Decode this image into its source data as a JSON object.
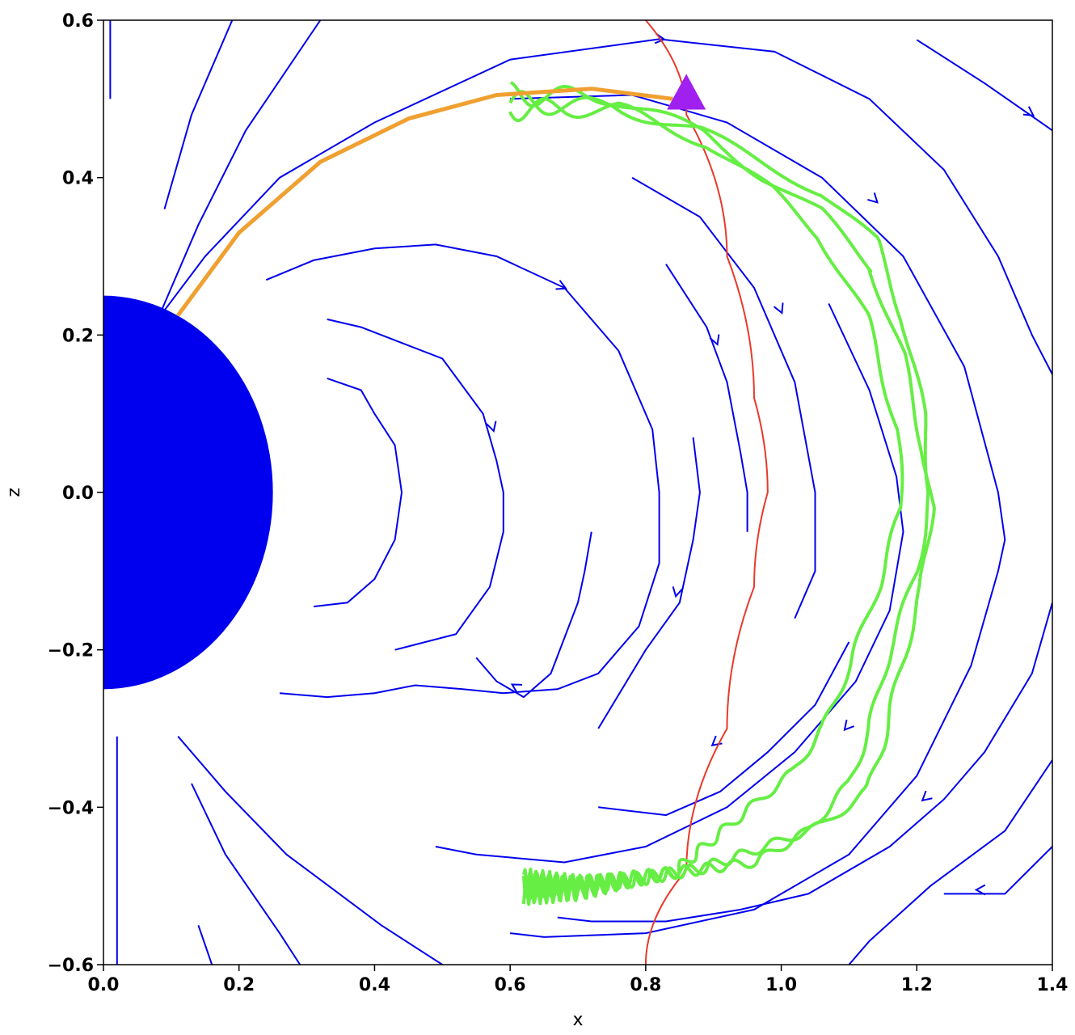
{
  "chart_data": {
    "type": "line",
    "title": "",
    "xlabel": "x",
    "ylabel": "z",
    "xlim": [
      0.0,
      1.4
    ],
    "ylim": [
      -0.6,
      0.6
    ],
    "x_ticks": [
      "0.0",
      "0.2",
      "0.4",
      "0.6",
      "0.8",
      "1.0",
      "1.2",
      "1.4"
    ],
    "y_ticks": [
      "0.6",
      "0.4",
      "0.2",
      "0.0",
      "−0.2",
      "−0.4",
      "−0.6"
    ],
    "x_tick_values": [
      0.0,
      0.2,
      0.4,
      0.6,
      0.8,
      1.0,
      1.2,
      1.4
    ],
    "y_tick_values": [
      0.6,
      0.4,
      0.2,
      0.0,
      -0.2,
      -0.4,
      -0.6
    ],
    "grid": false,
    "colors": {
      "field_lines": "#0000ee",
      "planet": "#0000ee",
      "boundary": "#e8392b",
      "guiding_line": "#f0a030",
      "particle_path": "#66ee44",
      "start_marker": "#a020f0"
    },
    "planet_radius": 0.25,
    "boundary_line": {
      "description_points": [
        [
          0.8,
          0.6
        ],
        [
          0.86,
          0.48
        ],
        [
          0.92,
          0.3
        ],
        [
          0.96,
          0.12
        ],
        [
          0.98,
          0.0
        ],
        [
          0.96,
          -0.12
        ],
        [
          0.92,
          -0.3
        ],
        [
          0.86,
          -0.48
        ],
        [
          0.8,
          -0.6
        ]
      ]
    },
    "guiding_field_line": [
      [
        0.11,
        0.225
      ],
      [
        0.2,
        0.33
      ],
      [
        0.32,
        0.42
      ],
      [
        0.45,
        0.475
      ],
      [
        0.58,
        0.505
      ],
      [
        0.72,
        0.513
      ],
      [
        0.84,
        0.5
      ]
    ],
    "start_marker": [
      0.86,
      0.505
    ],
    "field_lines": [
      {
        "points": [
          [
            0.01,
            0.6
          ],
          [
            0.01,
            0.5
          ]
        ]
      },
      {
        "points": [
          [
            0.09,
            0.36
          ],
          [
            0.13,
            0.48
          ],
          [
            0.19,
            0.6
          ]
        ]
      },
      {
        "points": [
          [
            0.08,
            0.22
          ],
          [
            0.14,
            0.34
          ],
          [
            0.21,
            0.46
          ],
          [
            0.32,
            0.6
          ]
        ]
      },
      {
        "points": [
          [
            0.08,
            0.22
          ],
          [
            0.15,
            0.3
          ],
          [
            0.26,
            0.4
          ],
          [
            0.4,
            0.47
          ],
          [
            0.6,
            0.55
          ],
          [
            0.82,
            0.576
          ],
          [
            0.99,
            0.56
          ],
          [
            1.13,
            0.5
          ],
          [
            1.24,
            0.41
          ],
          [
            1.32,
            0.3
          ],
          [
            1.37,
            0.2
          ],
          [
            1.4,
            0.15
          ]
        ],
        "arrows": [
          0.825,
          0.576
        ]
      },
      {
        "points": [
          [
            0.6,
            0.5
          ],
          [
            0.78,
            0.505
          ],
          [
            0.92,
            0.47
          ],
          [
            1.06,
            0.4
          ],
          [
            1.18,
            0.3
          ],
          [
            1.27,
            0.16
          ],
          [
            1.32,
            0.0
          ],
          [
            1.33,
            -0.06
          ],
          [
            1.32,
            -0.1
          ],
          [
            1.28,
            -0.22
          ],
          [
            1.2,
            -0.36
          ],
          [
            1.1,
            -0.46
          ],
          [
            0.96,
            -0.53
          ],
          [
            0.8,
            -0.56
          ],
          [
            0.65,
            -0.565
          ],
          [
            0.6,
            -0.56
          ]
        ],
        "arrows": [
          1.14,
          0.37
        ]
      },
      {
        "points": [
          [
            1.2,
            0.575
          ],
          [
            1.3,
            0.52
          ],
          [
            1.4,
            0.46
          ]
        ],
        "arrows": [
          1.37,
          0.48
        ]
      },
      {
        "points": [
          [
            0.24,
            0.27
          ],
          [
            0.31,
            0.295
          ],
          [
            0.4,
            0.31
          ],
          [
            0.49,
            0.315
          ],
          [
            0.58,
            0.3
          ],
          [
            0.68,
            0.26
          ],
          [
            0.76,
            0.18
          ],
          [
            0.81,
            0.08
          ],
          [
            0.82,
            0.0
          ],
          [
            0.82,
            -0.09
          ],
          [
            0.79,
            -0.17
          ],
          [
            0.73,
            -0.23
          ],
          [
            0.67,
            -0.25
          ],
          [
            0.59,
            -0.255
          ],
          [
            0.53,
            -0.25
          ],
          [
            0.46,
            -0.245
          ],
          [
            0.4,
            -0.255
          ],
          [
            0.33,
            -0.26
          ],
          [
            0.26,
            -0.255
          ]
        ],
        "arrows": [
          0.68,
          0.26
        ]
      },
      {
        "points": [
          [
            0.33,
            0.22
          ],
          [
            0.38,
            0.21
          ],
          [
            0.44,
            0.19
          ],
          [
            0.5,
            0.17
          ],
          [
            0.56,
            0.1
          ],
          [
            0.58,
            0.04
          ],
          [
            0.59,
            0.0
          ],
          [
            0.59,
            -0.05
          ],
          [
            0.57,
            -0.12
          ],
          [
            0.52,
            -0.18
          ],
          [
            0.43,
            -0.2
          ]
        ],
        "arrows": [
          0.575,
          0.08
        ]
      },
      {
        "points": [
          [
            0.33,
            0.145
          ],
          [
            0.38,
            0.13
          ],
          [
            0.4,
            0.1
          ],
          [
            0.43,
            0.06
          ],
          [
            0.44,
            0.0
          ],
          [
            0.43,
            -0.06
          ],
          [
            0.4,
            -0.11
          ],
          [
            0.36,
            -0.14
          ],
          [
            0.31,
            -0.145
          ]
        ]
      },
      {
        "points": [
          [
            0.78,
            0.4
          ],
          [
            0.88,
            0.35
          ],
          [
            0.96,
            0.26
          ],
          [
            1.02,
            0.14
          ],
          [
            1.05,
            0.0
          ],
          [
            1.05,
            -0.1
          ],
          [
            1.02,
            -0.16
          ]
        ],
        "arrows": [
          1.0,
          0.23
        ]
      },
      {
        "points": [
          [
            0.83,
            0.29
          ],
          [
            0.89,
            0.21
          ],
          [
            0.92,
            0.14
          ],
          [
            0.94,
            0.05
          ],
          [
            0.95,
            0.0
          ],
          [
            0.95,
            -0.05
          ]
        ],
        "arrows": [
          0.905,
          0.19
        ]
      },
      {
        "points": [
          [
            0.87,
            0.07
          ],
          [
            0.88,
            0.0
          ],
          [
            0.87,
            -0.06
          ],
          [
            0.85,
            -0.14
          ],
          [
            0.8,
            -0.2
          ],
          [
            0.73,
            -0.3
          ]
        ],
        "arrows": [
          0.845,
          -0.13
        ]
      },
      {
        "points": [
          [
            0.72,
            -0.05
          ],
          [
            0.71,
            -0.1
          ],
          [
            0.7,
            -0.14
          ],
          [
            0.66,
            -0.23
          ],
          [
            0.62,
            -0.26
          ],
          [
            0.58,
            -0.24
          ],
          [
            0.55,
            -0.21
          ]
        ],
        "arrows": [
          0.605,
          -0.245
        ]
      },
      {
        "points": [
          [
            1.1,
            -0.19
          ],
          [
            1.05,
            -0.27
          ],
          [
            0.98,
            -0.33
          ],
          [
            0.91,
            -0.38
          ],
          [
            0.83,
            -0.41
          ],
          [
            0.73,
            -0.4
          ]
        ],
        "arrows": [
          0.9,
          -0.32
        ]
      },
      {
        "points": [
          [
            1.07,
            0.24
          ],
          [
            1.13,
            0.13
          ],
          [
            1.17,
            0.02
          ],
          [
            1.18,
            -0.05
          ],
          [
            1.16,
            -0.15
          ],
          [
            1.11,
            -0.24
          ],
          [
            1.02,
            -0.33
          ],
          [
            0.92,
            -0.4
          ],
          [
            0.8,
            -0.45
          ],
          [
            0.68,
            -0.47
          ],
          [
            0.55,
            -0.46
          ],
          [
            0.49,
            -0.45
          ]
        ],
        "arrows": [
          1.095,
          -0.3
        ]
      },
      {
        "points": [
          [
            1.4,
            -0.14
          ],
          [
            1.37,
            -0.23
          ],
          [
            1.3,
            -0.33
          ],
          [
            1.24,
            -0.39
          ],
          [
            1.16,
            -0.45
          ],
          [
            1.04,
            -0.51
          ],
          [
            0.94,
            -0.53
          ],
          [
            0.83,
            -0.545
          ],
          [
            0.72,
            -0.545
          ],
          [
            0.67,
            -0.54
          ]
        ],
        "arrows": [
          1.21,
          -0.39
        ]
      },
      {
        "points": [
          [
            1.4,
            -0.45
          ],
          [
            1.33,
            -0.51
          ],
          [
            1.24,
            -0.51
          ]
        ],
        "arrows": [
          1.29,
          -0.505
        ]
      },
      {
        "points": [
          [
            1.4,
            -0.34
          ],
          [
            1.33,
            -0.43
          ],
          [
            1.22,
            -0.5
          ],
          [
            1.13,
            -0.57
          ],
          [
            1.1,
            -0.6
          ]
        ]
      },
      {
        "points": [
          [
            0.02,
            -0.31
          ],
          [
            0.02,
            -0.6
          ]
        ]
      },
      {
        "points": [
          [
            0.11,
            -0.31
          ],
          [
            0.18,
            -0.38
          ],
          [
            0.27,
            -0.46
          ],
          [
            0.41,
            -0.55
          ],
          [
            0.5,
            -0.6
          ]
        ]
      },
      {
        "points": [
          [
            0.13,
            -0.37
          ],
          [
            0.18,
            -0.46
          ],
          [
            0.26,
            -0.56
          ],
          [
            0.29,
            -0.6
          ]
        ]
      },
      {
        "points": [
          [
            0.14,
            -0.55
          ],
          [
            0.16,
            -0.6
          ]
        ]
      }
    ],
    "particle_paths": [
      {
        "name": "",
        "center": [
          [
            0.6,
            0.495
          ],
          [
            0.75,
            0.49
          ],
          [
            0.88,
            0.46
          ],
          [
            0.97,
            0.42
          ],
          [
            1.06,
            0.38
          ],
          [
            1.14,
            0.32
          ],
          [
            1.18,
            0.22
          ],
          [
            1.21,
            0.1
          ],
          [
            1.22,
            0.0
          ],
          [
            1.2,
            -0.1
          ],
          [
            1.16,
            -0.2
          ],
          [
            1.13,
            -0.3
          ],
          [
            1.1,
            -0.37
          ],
          [
            1.04,
            -0.43
          ],
          [
            0.96,
            -0.47
          ],
          [
            0.87,
            -0.48
          ],
          [
            0.78,
            -0.49
          ],
          [
            0.7,
            -0.5
          ],
          [
            0.62,
            -0.5
          ]
        ],
        "offset": 0.0
      },
      {
        "name": "",
        "center": [
          [
            0.6,
            0.495
          ],
          [
            0.75,
            0.49
          ],
          [
            0.88,
            0.45
          ],
          [
            0.97,
            0.4
          ],
          [
            1.06,
            0.36
          ],
          [
            1.14,
            0.29
          ],
          [
            1.19,
            0.18
          ],
          [
            1.22,
            0.06
          ],
          [
            1.23,
            -0.02
          ],
          [
            1.21,
            -0.12
          ],
          [
            1.17,
            -0.23
          ],
          [
            1.14,
            -0.32
          ],
          [
            1.12,
            -0.37
          ],
          [
            1.06,
            -0.41
          ],
          [
            0.97,
            -0.44
          ],
          [
            0.88,
            -0.47
          ],
          [
            0.78,
            -0.49
          ],
          [
            0.7,
            -0.5
          ],
          [
            0.62,
            -0.5
          ]
        ],
        "offset": 0.012
      },
      {
        "name": "",
        "center": [
          [
            0.6,
            0.495
          ],
          [
            0.76,
            0.49
          ],
          [
            0.89,
            0.44
          ],
          [
            0.98,
            0.38
          ],
          [
            1.05,
            0.32
          ],
          [
            1.12,
            0.22
          ],
          [
            1.17,
            0.08
          ],
          [
            1.18,
            -0.02
          ],
          [
            1.15,
            -0.12
          ],
          [
            1.11,
            -0.22
          ],
          [
            1.07,
            -0.3
          ],
          [
            1.02,
            -0.36
          ],
          [
            0.96,
            -0.4
          ],
          [
            0.9,
            -0.44
          ],
          [
            0.84,
            -0.48
          ],
          [
            0.76,
            -0.49
          ],
          [
            0.7,
            -0.5
          ],
          [
            0.62,
            -0.5
          ]
        ],
        "offset": -0.008
      }
    ]
  }
}
